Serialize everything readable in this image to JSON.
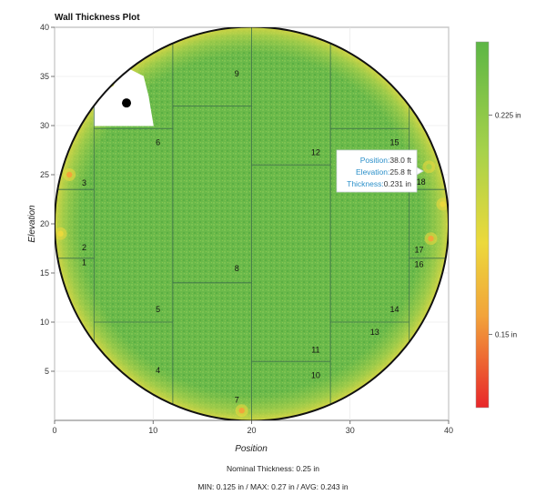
{
  "chart_data": {
    "type": "heatmap",
    "title": "Wall Thickness Plot",
    "xlabel": "Position",
    "ylabel": "Elevation",
    "xlim": [
      0,
      40
    ],
    "ylim": [
      0,
      40
    ],
    "xticks": [
      0,
      10,
      20,
      30,
      40
    ],
    "yticks": [
      5,
      10,
      15,
      20,
      25,
      30,
      35,
      40
    ],
    "tank_circle": {
      "center": [
        20,
        20
      ],
      "radius": 20
    },
    "colorbar": {
      "min": 0.125,
      "max": 0.25,
      "ticks": [
        {
          "value": 0.225,
          "label": "0.225 in"
        },
        {
          "value": 0.15,
          "label": "0.15 in"
        }
      ],
      "colors": [
        "#e8262a",
        "#f2a33a",
        "#ecd93c",
        "#a7d24a",
        "#5db646"
      ]
    },
    "zone_boundaries": [
      {
        "x": [
          4,
          4
        ],
        "y": [
          0,
          40
        ]
      },
      {
        "x": [
          12,
          12
        ],
        "y": [
          0,
          40
        ]
      },
      {
        "x": [
          20,
          20
        ],
        "y": [
          0,
          40
        ]
      },
      {
        "x": [
          28,
          28
        ],
        "y": [
          0,
          40
        ]
      },
      {
        "x": [
          36,
          36
        ],
        "y": [
          0,
          40
        ]
      },
      {
        "x": [
          0,
          4
        ],
        "y": [
          23.5,
          23.5
        ]
      },
      {
        "x": [
          0,
          4
        ],
        "y": [
          16.5,
          16.5
        ]
      },
      {
        "x": [
          4,
          12
        ],
        "y": [
          29.7,
          29.7
        ]
      },
      {
        "x": [
          4,
          12
        ],
        "y": [
          10,
          10
        ]
      },
      {
        "x": [
          12,
          20
        ],
        "y": [
          32,
          32
        ]
      },
      {
        "x": [
          12,
          20
        ],
        "y": [
          14,
          14
        ]
      },
      {
        "x": [
          20,
          28
        ],
        "y": [
          26,
          26
        ]
      },
      {
        "x": [
          20,
          28
        ],
        "y": [
          6,
          6
        ]
      },
      {
        "x": [
          28,
          36
        ],
        "y": [
          29.7,
          29.7
        ]
      },
      {
        "x": [
          28,
          36
        ],
        "y": [
          10,
          10
        ]
      },
      {
        "x": [
          36,
          40
        ],
        "y": [
          23.5,
          23.5
        ]
      },
      {
        "x": [
          36,
          40
        ],
        "y": [
          16.5,
          16.5
        ]
      }
    ],
    "zones": [
      {
        "id": "1",
        "x": 3.0,
        "y": 15.8
      },
      {
        "id": "2",
        "x": 3.0,
        "y": 17.3
      },
      {
        "id": "3",
        "x": 3.0,
        "y": 23.9
      },
      {
        "id": "4",
        "x": 10.5,
        "y": 4.8
      },
      {
        "id": "5",
        "x": 10.5,
        "y": 11.0
      },
      {
        "id": "6",
        "x": 10.5,
        "y": 28.0
      },
      {
        "id": "7",
        "x": 18.5,
        "y": 1.8
      },
      {
        "id": "8",
        "x": 18.5,
        "y": 15.2
      },
      {
        "id": "9",
        "x": 18.5,
        "y": 35.0
      },
      {
        "id": "10",
        "x": 26.5,
        "y": 4.3
      },
      {
        "id": "11",
        "x": 26.5,
        "y": 6.9
      },
      {
        "id": "12",
        "x": 26.5,
        "y": 27.0
      },
      {
        "id": "13",
        "x": 32.5,
        "y": 8.7
      },
      {
        "id": "14",
        "x": 34.5,
        "y": 11.0
      },
      {
        "id": "15",
        "x": 34.5,
        "y": 28.0
      },
      {
        "id": "16",
        "x": 37.0,
        "y": 15.6
      },
      {
        "id": "17",
        "x": 37.0,
        "y": 17.1
      },
      {
        "id": "18",
        "x": 37.2,
        "y": 24.0
      }
    ],
    "hotspots": [
      {
        "x": 1.5,
        "y": 25.0,
        "thickness": 0.15
      },
      {
        "x": 38.0,
        "y": 25.8,
        "thickness": 0.231
      },
      {
        "x": 38.2,
        "y": 18.5,
        "thickness": 0.15
      },
      {
        "x": 19.0,
        "y": 1.0,
        "thickness": 0.16
      },
      {
        "x": 0.6,
        "y": 19.0,
        "thickness": 0.2
      },
      {
        "x": 39.4,
        "y": 22.0,
        "thickness": 0.2
      }
    ],
    "cutout": {
      "polygon": [
        [
          4,
          30
        ],
        [
          4,
          33
        ],
        [
          6,
          34
        ],
        [
          7,
          36
        ],
        [
          9,
          35
        ],
        [
          9.5,
          33
        ],
        [
          10,
          30
        ]
      ],
      "marker": [
        7.3,
        32.3
      ]
    },
    "tooltip": {
      "position": {
        "label": "Position:",
        "value": "38.0 ft"
      },
      "elevation": {
        "label": "Elevation:",
        "value": "25.8 ft"
      },
      "thickness": {
        "label": "Thickness:",
        "value": "0.231 in"
      }
    },
    "nominal_thickness": "Nominal Thickness:  0.25 in",
    "summary": "MIN: 0.125 in / MAX: 0.27 in / AVG: 0.243 in"
  }
}
